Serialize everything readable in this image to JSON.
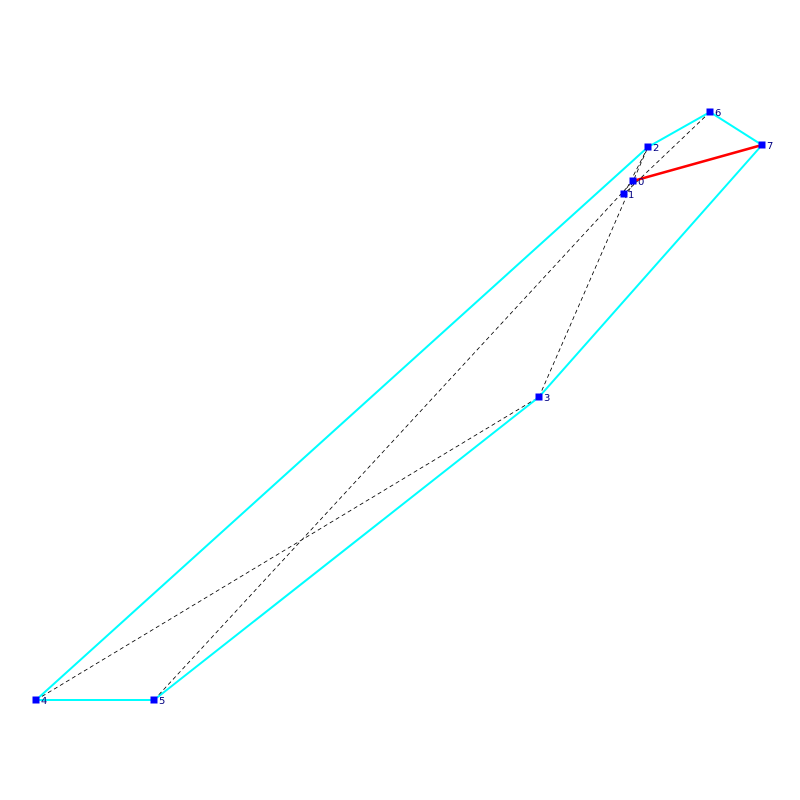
{
  "nodes": [
    {
      "label": "0"
    },
    {
      "label": "1"
    },
    {
      "label": "2"
    },
    {
      "label": "3"
    },
    {
      "label": "4"
    },
    {
      "label": "5"
    },
    {
      "label": "6"
    },
    {
      "label": "7"
    }
  ]
}
